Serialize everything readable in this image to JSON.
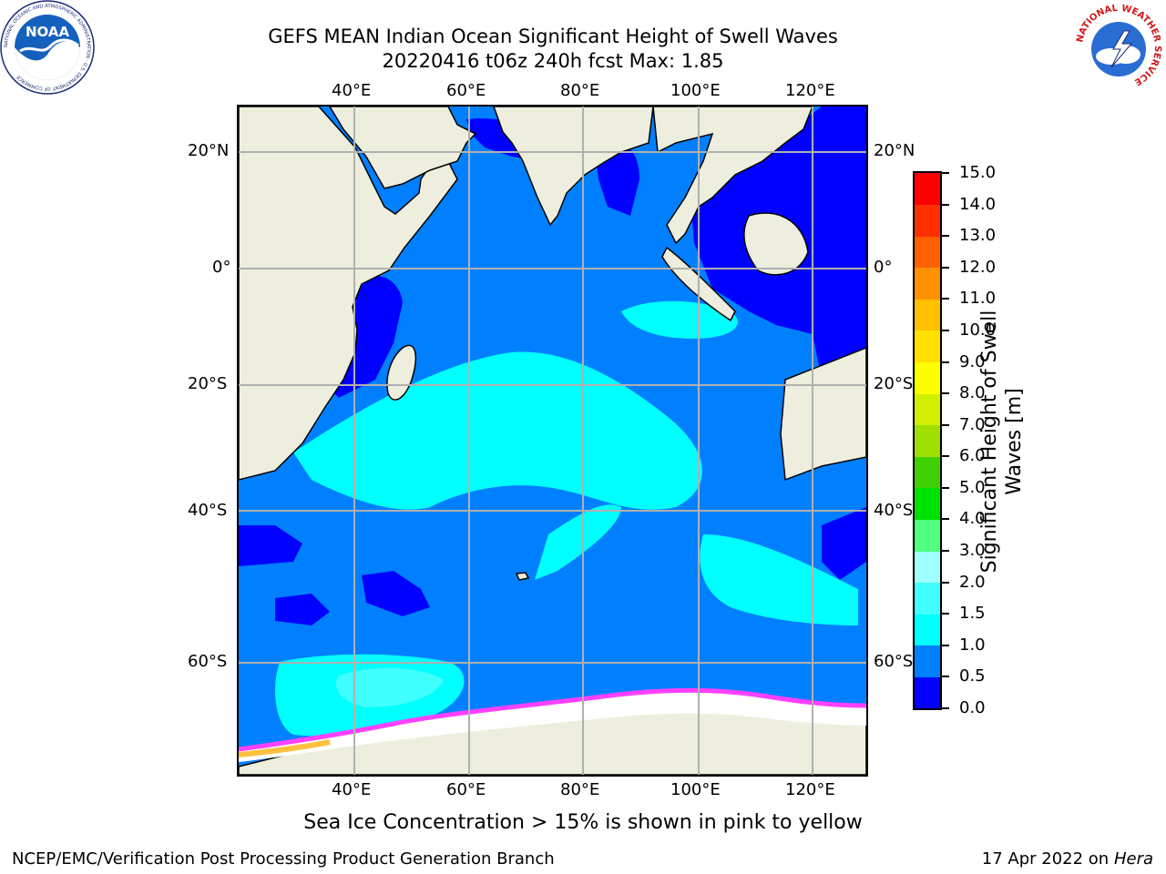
{
  "title": {
    "line1": "GEFS MEAN Indian Ocean Significant Height of Swell Waves",
    "line2": "20220416 t06z 240h fcst   Max: 1.85"
  },
  "map": {
    "lon_ticks": [
      "40°E",
      "60°E",
      "80°E",
      "100°E",
      "120°E"
    ],
    "lat_ticks": [
      "20°N",
      "0°",
      "20°S",
      "40°S",
      "60°S"
    ],
    "colors": {
      "land": "#eeeede",
      "grid": "#b0b0b0",
      "ocean_0_0.5": "#0000ff",
      "ocean_0.5_1.0": "#0080ff",
      "ocean_1.0_1.5": "#00ffff",
      "ocean_1.5_2.0": "#40ffff",
      "sea_ice": "#ffffff",
      "ice_edge_pink": "#ff40ff",
      "ice_edge_yellow": "#ffc040"
    }
  },
  "colorbar": {
    "label": "Significant Height of Swell Waves [m]",
    "ticks": [
      "0.0",
      "0.5",
      "1.0",
      "1.5",
      "2.0",
      "3.0",
      "4.0",
      "5.0",
      "6.0",
      "7.0",
      "8.0",
      "9.0",
      "10.0",
      "11.0",
      "12.0",
      "13.0",
      "14.0",
      "15.0"
    ],
    "colors": [
      "#0000ff",
      "#0080ff",
      "#00ffff",
      "#40ffff",
      "#a0ffff",
      "#50ff80",
      "#00e000",
      "#40d000",
      "#a0e000",
      "#d0f000",
      "#ffff00",
      "#ffe000",
      "#ffc000",
      "#ff9000",
      "#ff6000",
      "#ff3000",
      "#ff0000"
    ]
  },
  "footer": {
    "caption": "Sea Ice Concentration > 15% is shown in pink to yellow",
    "left": "NCEP/EMC/Verification Post Processing Product Generation Branch",
    "right_prefix": "17 Apr 2022 on ",
    "right_host": "Hera"
  },
  "logos": {
    "noaa_text": "NOAA",
    "noaa_ring": "NATIONAL OCEANIC AND ATMOSPHERIC ADMINISTRATION · U.S. DEPARTMENT OF COMMERCE",
    "nws_ring": "NATIONAL WEATHER SERVICE"
  }
}
